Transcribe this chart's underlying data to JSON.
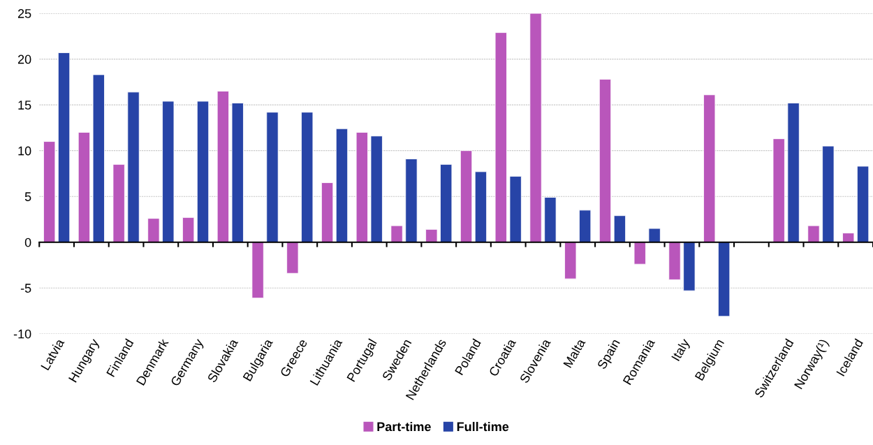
{
  "chart_data": {
    "type": "bar",
    "categories": [
      "Latvia",
      "Hungary",
      "Finland",
      "Denmark",
      "Germany",
      "Slovakia",
      "Bulgaria",
      "Greece",
      "Lithuania",
      "Portugal",
      "Sweden",
      "Netherlands",
      "Poland",
      "Croatia",
      "Slovenia",
      "Malta",
      "Spain",
      "Romania",
      "Italy",
      "Belgium",
      null,
      "Switzerland",
      "Norway(¹)",
      "Iceland"
    ],
    "series": [
      {
        "name": "Part-time",
        "color": "#b956bb",
        "values": [
          11.0,
          12.0,
          8.5,
          2.6,
          2.7,
          16.5,
          -6.1,
          -3.4,
          6.5,
          12.0,
          1.8,
          1.4,
          10.0,
          22.9,
          25.0,
          -4.0,
          17.8,
          -2.4,
          -4.1,
          16.1,
          null,
          11.3,
          1.8,
          1.0
        ]
      },
      {
        "name": "Full-time",
        "color": "#2744a7",
        "values": [
          20.7,
          18.3,
          16.4,
          15.4,
          15.4,
          15.2,
          14.2,
          14.2,
          12.4,
          11.6,
          9.1,
          8.5,
          7.7,
          7.2,
          4.9,
          3.5,
          2.9,
          1.5,
          -5.3,
          -8.1,
          null,
          15.2,
          10.5,
          8.3
        ]
      }
    ],
    "ylim": [
      -10,
      25
    ],
    "yticks": [
      -10,
      -5,
      0,
      5,
      10,
      15,
      20,
      25
    ],
    "grid": "y",
    "legend": "bottom"
  }
}
